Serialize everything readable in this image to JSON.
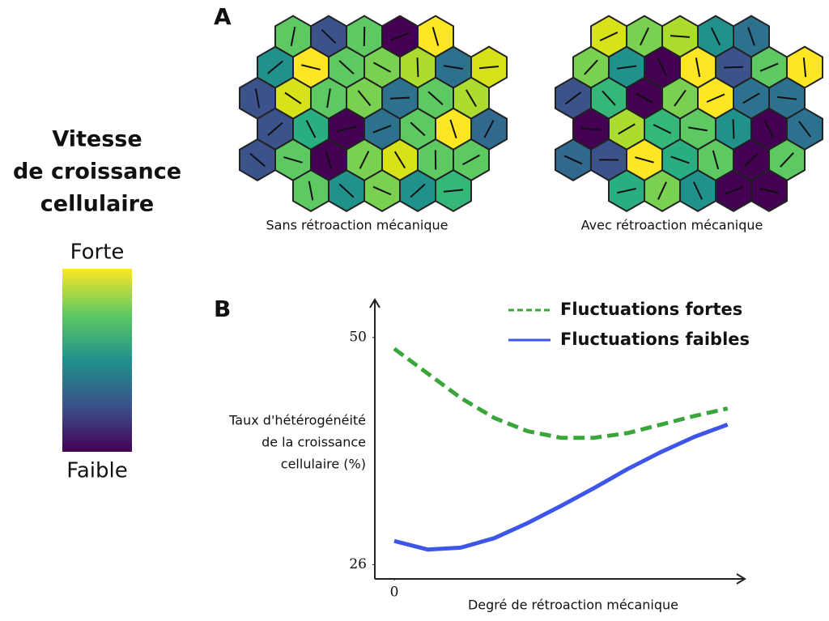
{
  "panel_a": {
    "label": "A",
    "captions": [
      "Sans rétroaction mécanique",
      "Avec rétroaction mécanique"
    ]
  },
  "colorbar": {
    "title_lines": [
      "Vitesse",
      "de croissance",
      "cellulaire"
    ],
    "high": "Forte",
    "low": "Faible"
  },
  "panel_b": {
    "label": "B"
  },
  "chart_data": {
    "type": "line",
    "y_label_lines": [
      "Taux d'hétérogénéité",
      "de la croissance",
      "cellulaire (%)"
    ],
    "x_label": "Degré de rétroaction mécanique",
    "x": [
      0,
      1,
      2,
      3,
      4,
      5,
      6,
      7,
      8,
      9,
      10
    ],
    "series": [
      {
        "name": "Fluctuations fortes",
        "color": "#3aa63a",
        "dashed": true,
        "values": [
          48.8,
          46.2,
          43.6,
          41.5,
          40.1,
          39.4,
          39.4,
          39.9,
          40.8,
          41.7,
          42.5
        ]
      },
      {
        "name": "Fluctuations faibles",
        "color": "#3d55e8",
        "dashed": false,
        "values": [
          28.5,
          27.6,
          27.8,
          28.8,
          30.4,
          32.2,
          34.1,
          36.1,
          37.9,
          39.5,
          40.8
        ]
      }
    ],
    "xlim": [
      0,
      11.1
    ],
    "ylim": [
      24.5,
      54
    ],
    "xticks": [
      0
    ],
    "yticks": [
      26,
      50
    ],
    "grid": false
  }
}
